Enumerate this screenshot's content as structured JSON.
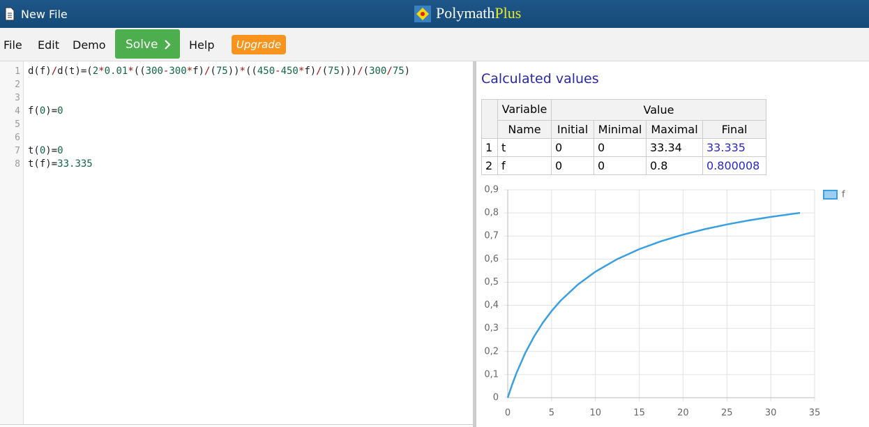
{
  "header": {
    "title": "New File",
    "logo": "Polymath",
    "logo_accent": "Plus"
  },
  "menu": {
    "items": [
      "File",
      "Edit",
      "Demo"
    ],
    "solve": "Solve",
    "help": "Help",
    "upgrade": "Upgrade"
  },
  "editor": {
    "lines": [
      {
        "number": "1",
        "code": "d(f)/d(t)=(2*0.01*((300-300*f)/(75))*((450-450*f)/(75)))/(300/75)"
      },
      {
        "number": "2"
      },
      {
        "number": "3"
      },
      {
        "number": "4",
        "code": "f(0)=0"
      },
      {
        "number": "5"
      },
      {
        "number": "6"
      },
      {
        "number": "7",
        "code": "t(0)=0"
      },
      {
        "number": "8",
        "code": "t(f)=33.335"
      }
    ]
  },
  "results": {
    "title": "Calculated values",
    "table": {
      "header": {
        "variable": "Variable",
        "name": "Name",
        "value": "Value",
        "columns": [
          "Initial",
          "Minimal",
          "Maximal",
          "Final"
        ]
      },
      "rows": [
        [
          "1",
          "t",
          "0",
          "0",
          "33.34",
          "33.335"
        ],
        [
          "2",
          "f",
          "0",
          "0",
          "0.8",
          "0.800008"
        ]
      ]
    }
  },
  "chart_data": {
    "type": "line",
    "x": [
      0,
      0.5,
      1,
      2,
      3,
      4,
      5,
      6,
      8,
      10,
      12.5,
      15,
      17.5,
      20,
      22.5,
      25,
      27.5,
      30,
      33.335
    ],
    "series": [
      {
        "name": "f",
        "color": "#3a9fe0",
        "values": [
          0,
          0.0566,
          0.1071,
          0.1935,
          0.2647,
          0.3243,
          0.375,
          0.4186,
          0.4898,
          0.5455,
          0.6,
          0.6429,
          0.6774,
          0.7059,
          0.7297,
          0.75,
          0.7674,
          0.7826,
          0.8
        ]
      }
    ],
    "xlim": [
      0,
      35
    ],
    "xticks": [
      0,
      5,
      10,
      15,
      20,
      25,
      30,
      35
    ],
    "ylim": [
      0,
      0.9
    ],
    "yticks": [
      0,
      {
        "value": 0.1,
        "label": "0,1"
      },
      {
        "value": 0.2,
        "label": "0,2"
      },
      {
        "value": 0.3,
        "label": "0,3"
      },
      {
        "value": 0.4,
        "label": "0,4"
      },
      {
        "value": 0.5,
        "label": "0,5"
      },
      {
        "value": 0.6,
        "label": "0,6"
      },
      {
        "value": 0.7,
        "label": "0,7"
      },
      {
        "value": 0.8,
        "label": "0,8"
      },
      {
        "value": 0.9,
        "label": "0,9"
      }
    ],
    "grid": true,
    "legend": "top-right"
  }
}
